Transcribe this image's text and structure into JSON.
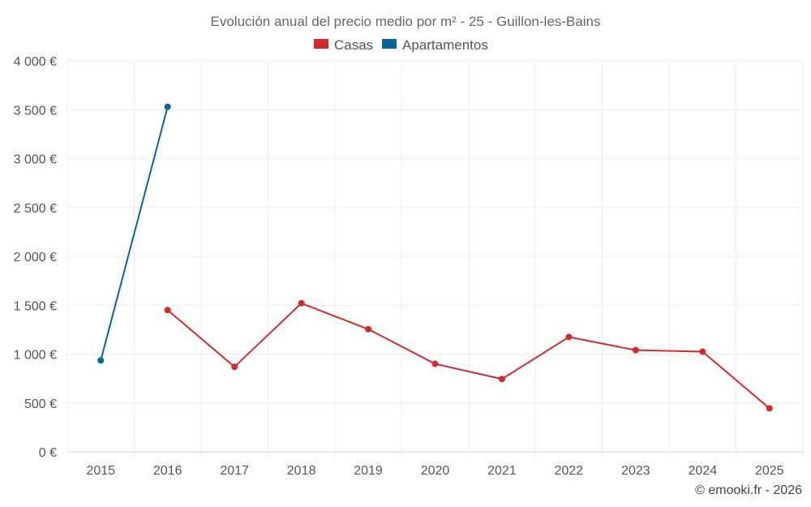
{
  "chart_data": {
    "type": "line",
    "title": "Evolución anual del precio medio por m² - 25 - Guillon-les-Bains",
    "categories": [
      "2015",
      "2016",
      "2017",
      "2018",
      "2019",
      "2020",
      "2021",
      "2022",
      "2023",
      "2024",
      "2025"
    ],
    "y_ticks": [
      "0 €",
      "500 €",
      "1 000 €",
      "1 500 €",
      "2 000 €",
      "2 500 €",
      "3 000 €",
      "3 500 €",
      "4 000 €"
    ],
    "ylim": [
      0,
      4000
    ],
    "xlabel": "",
    "ylabel": "",
    "grid": true,
    "legend_position": "top-center",
    "series": [
      {
        "name": "Casas",
        "color": "#d32a2a",
        "values": [
          null,
          1450,
          870,
          1520,
          1255,
          900,
          745,
          1175,
          1040,
          1025,
          445
        ]
      },
      {
        "name": "Apartamentos",
        "color": "#0b6396",
        "values": [
          935,
          3530,
          null,
          null,
          null,
          null,
          null,
          null,
          null,
          null,
          null
        ]
      }
    ]
  },
  "footer": {
    "credit": "© emooki.fr - 2026"
  }
}
